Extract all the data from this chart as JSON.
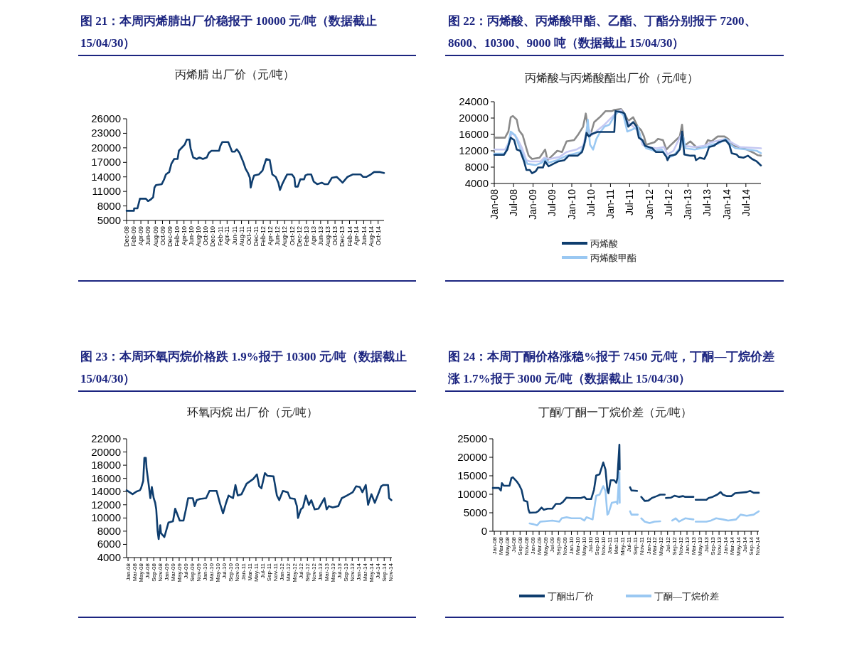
{
  "chart_data": [
    {
      "type": "line",
      "title": "图 21：本周丙烯腈出厂价稳报于 10000 元/吨（数据截止 15/04/30）",
      "subtitle": "丙烯腈 出厂价（元/吨）",
      "xlim": [
        "2008-12-01",
        "2014-11-20"
      ],
      "ylim": [
        5000,
        26000
      ],
      "yticks": [
        5000,
        8000,
        11000,
        14000,
        17000,
        20000,
        23000,
        26000
      ],
      "xticks": [
        {
          "value": "2008-12-01",
          "label": "Dec-08"
        },
        {
          "value": "2009-02-01",
          "label": "Feb-09"
        },
        {
          "value": "2009-04-01",
          "label": "Apr-09"
        },
        {
          "value": "2009-06-01",
          "label": "Jun-09"
        },
        {
          "value": "2009-08-01",
          "label": "Aug-09"
        },
        {
          "value": "2009-10-01",
          "label": "Oct-09"
        },
        {
          "value": "2009-12-01",
          "label": "Dec-09"
        },
        {
          "value": "2010-02-01",
          "label": "Feb-10"
        },
        {
          "value": "2010-04-01",
          "label": "Apr-10"
        },
        {
          "value": "2010-06-01",
          "label": "Jun-10"
        },
        {
          "value": "2010-08-01",
          "label": "Aug-10"
        },
        {
          "value": "2010-10-01",
          "label": "Oct-10"
        },
        {
          "value": "2010-12-01",
          "label": "Dec-10"
        },
        {
          "value": "2011-02-01",
          "label": "Feb-11"
        },
        {
          "value": "2011-04-01",
          "label": "Apr-11"
        },
        {
          "value": "2011-06-01",
          "label": "Jun-11"
        },
        {
          "value": "2011-08-01",
          "label": "Aug-11"
        },
        {
          "value": "2011-10-01",
          "label": "Oct-11"
        },
        {
          "value": "2011-12-01",
          "label": "Dec-11"
        },
        {
          "value": "2012-02-01",
          "label": "Feb-12"
        },
        {
          "value": "2012-04-01",
          "label": "Apr-12"
        },
        {
          "value": "2012-06-01",
          "label": "Jun-12"
        },
        {
          "value": "2012-08-01",
          "label": "Aug-12"
        },
        {
          "value": "2012-10-01",
          "label": "Oct-12"
        },
        {
          "value": "2012-12-01",
          "label": "Dec-12"
        },
        {
          "value": "2013-02-01",
          "label": "Feb-13"
        },
        {
          "value": "2013-04-01",
          "label": "Apr-13"
        },
        {
          "value": "2013-06-01",
          "label": "Jun-13"
        },
        {
          "value": "2013-08-01",
          "label": "Aug-13"
        },
        {
          "value": "2013-10-01",
          "label": "Oct-13"
        },
        {
          "value": "2013-12-01",
          "label": "Dec-13"
        },
        {
          "value": "2014-02-01",
          "label": "Feb-14"
        },
        {
          "value": "2014-04-01",
          "label": "Apr-14"
        },
        {
          "value": "2014-06-01",
          "label": "Jun-14"
        },
        {
          "value": "2014-08-01",
          "label": "Aug-14"
        },
        {
          "value": "2014-10-01",
          "label": "Oct-14"
        }
      ],
      "series": [
        {
          "color": "#0e3d6e",
          "x": [
            "2008-12-01",
            "2009-02-01",
            "2009-02-03",
            "2009-03-03",
            "2009-03-24",
            "2009-05-13",
            "2009-06-01",
            "2009-06-22",
            "2009-07-14",
            "2009-07-25",
            "2009-08-07",
            "2009-09-25",
            "2009-10-15",
            "2009-10-30",
            "2009-11-27",
            "2009-12-15",
            "2010-01-08",
            "2010-02-06",
            "2010-02-17",
            "2010-03-20",
            "2010-04-08",
            "2010-04-25",
            "2010-05-17",
            "2010-05-27",
            "2010-06-18",
            "2010-07-18",
            "2010-08-10",
            "2010-09-08",
            "2010-10-11",
            "2010-10-30",
            "2010-11-20",
            "2011-01-23",
            "2011-02-03",
            "2011-02-20",
            "2011-04-11",
            "2011-05-13",
            "2011-06-04",
            "2011-06-22",
            "2011-07-14",
            "2011-08-14",
            "2011-09-04",
            "2011-09-25",
            "2011-10-11",
            "2011-10-18",
            "2011-11-02",
            "2011-11-16",
            "2011-12-25",
            "2012-01-26",
            "2012-02-17",
            "2012-02-27",
            "2012-03-27",
            "2012-04-18",
            "2012-05-17",
            "2012-06-08",
            "2012-06-22",
            "2012-07-11",
            "2012-07-31",
            "2012-08-21",
            "2012-10-01",
            "2012-10-22",
            "2012-10-30",
            "2012-11-20",
            "2012-12-11",
            "2013-01-12",
            "2013-01-23",
            "2013-02-10",
            "2013-03-13",
            "2013-04-04",
            "2013-05-03",
            "2013-06-11",
            "2013-07-04",
            "2013-08-03",
            "2013-09-04",
            "2013-10-15",
            "2013-11-06",
            "2013-12-04",
            "2014-01-15",
            "2014-02-27",
            "2014-05-06",
            "2014-05-27",
            "2014-06-25",
            "2014-07-31",
            "2014-08-28",
            "2014-10-18",
            "2014-11-20"
          ],
          "values": [
            7000,
            7000,
            7500,
            7500,
            9500,
            9500,
            9000,
            9300,
            9800,
            11800,
            12300,
            12500,
            13500,
            14500,
            15000,
            16700,
            17700,
            17700,
            19400,
            20200,
            20700,
            21700,
            21700,
            19900,
            18000,
            17700,
            18000,
            17700,
            18000,
            19000,
            19400,
            19400,
            20400,
            21200,
            21200,
            19200,
            19200,
            19700,
            19000,
            17200,
            15700,
            14800,
            13800,
            11800,
            13300,
            14300,
            14500,
            15300,
            17000,
            17700,
            17500,
            14500,
            14000,
            12800,
            11300,
            12500,
            13500,
            14500,
            14500,
            13800,
            12000,
            12000,
            13500,
            13500,
            14300,
            14500,
            14500,
            13000,
            12500,
            12800,
            12500,
            12500,
            13800,
            14000,
            13500,
            12800,
            14000,
            14500,
            14500,
            14000,
            14000,
            14500,
            15000,
            15000,
            14800
          ]
        }
      ]
    },
    {
      "type": "line",
      "title": "图 22：丙烯酸、丙烯酸甲酯、乙酯、丁酯分别报于 7200、8600、10300、9000 吨（数据截止 15/04/30）",
      "subtitle": "丙烯酸与丙烯酸酯出厂价（元/吨）",
      "xlim": [
        "2008-01-01",
        "2014-11-20"
      ],
      "ylim": [
        4000,
        24000
      ],
      "yticks": [
        4000,
        8000,
        12000,
        16000,
        20000,
        24000
      ],
      "legend": "bottom",
      "xticks": [
        {
          "value": "2008-01-01",
          "label": "Jan-08"
        },
        {
          "value": "2008-07-01",
          "label": "Jul-08"
        },
        {
          "value": "2009-01-01",
          "label": "Jan-09"
        },
        {
          "value": "2009-07-01",
          "label": "Jul-09"
        },
        {
          "value": "2010-01-01",
          "label": "Jan-10"
        },
        {
          "value": "2010-07-01",
          "label": "Jul-10"
        },
        {
          "value": "2011-01-01",
          "label": "Jan-11"
        },
        {
          "value": "2011-07-01",
          "label": "Jul-11"
        },
        {
          "value": "2012-01-01",
          "label": "Jan-12"
        },
        {
          "value": "2012-07-01",
          "label": "Jul-12"
        },
        {
          "value": "2013-01-01",
          "label": "Jan-13"
        },
        {
          "value": "2013-07-01",
          "label": "Jul-13"
        },
        {
          "value": "2014-01-01",
          "label": "Jan-14"
        },
        {
          "value": "2014-07-01",
          "label": "Jul-14"
        }
      ],
      "series": [
        {
          "name": "丙烯酸",
          "color": "#0e3d6e",
          "x": [
            "2008-01-01",
            "2008-04-01",
            "2008-05-03",
            "2008-06-04",
            "2008-07-07",
            "2008-07-31",
            "2008-09-01",
            "2008-10-08",
            "2008-10-30",
            "2008-12-01",
            "2008-12-22",
            "2009-01-26",
            "2009-02-17",
            "2009-04-04",
            "2009-04-25",
            "2009-05-27",
            "2009-07-11",
            "2009-08-28",
            "2009-10-22",
            "2009-12-04",
            "2010-02-24",
            "2010-04-08",
            "2010-04-29",
            "2010-05-20",
            "2010-06-11",
            "2010-07-07",
            "2010-09-01",
            "2011-02-06",
            "2011-02-17",
            "2011-04-22",
            "2011-05-13",
            "2011-06-18",
            "2011-08-03",
            "2011-09-04",
            "2011-09-25",
            "2011-10-30",
            "2011-11-23",
            "2012-02-01",
            "2012-03-03",
            "2012-05-10",
            "2012-06-11",
            "2012-06-22",
            "2012-07-14",
            "2012-09-08",
            "2012-10-15",
            "2012-11-06",
            "2012-11-27",
            "2013-01-23",
            "2013-03-06",
            "2013-03-17",
            "2013-04-22",
            "2013-06-04",
            "2013-06-25",
            "2013-07-18",
            "2013-09-01",
            "2013-10-18",
            "2013-12-22",
            "2014-01-26",
            "2014-02-17",
            "2014-04-04",
            "2014-04-25",
            "2014-06-08",
            "2014-07-21",
            "2014-08-28",
            "2014-10-11",
            "2014-11-20"
          ],
          "values": [
            11000,
            11000,
            12300,
            15200,
            14600,
            12300,
            12000,
            9400,
            7300,
            7300,
            6500,
            7000,
            7900,
            7900,
            9400,
            8200,
            8800,
            9400,
            9700,
            10800,
            10800,
            11700,
            13500,
            16400,
            15500,
            16100,
            16600,
            16600,
            21700,
            21400,
            21100,
            17900,
            19000,
            17900,
            15200,
            14600,
            13200,
            12600,
            11700,
            11700,
            10500,
            9700,
            10800,
            11100,
            12300,
            16700,
            11100,
            10800,
            10800,
            9700,
            10300,
            10000,
            11100,
            12900,
            13200,
            14100,
            14600,
            13500,
            11400,
            11100,
            10500,
            10300,
            10800,
            10000,
            9400,
            8400
          ]
        },
        {
          "name": "丙烯酸甲酯",
          "color": "#9ac8f2",
          "x": [
            "2008-01-01",
            "2008-04-11",
            "2008-05-13",
            "2008-06-04",
            "2008-07-18",
            "2008-08-21",
            "2008-10-08",
            "2008-11-09",
            "2009-01-26",
            "2009-03-24",
            "2009-04-25",
            "2009-05-27",
            "2009-08-17",
            "2009-11-13",
            "2010-03-27",
            "2010-05-10",
            "2010-06-01",
            "2010-06-22",
            "2010-07-21",
            "2010-08-21",
            "2010-09-22",
            "2010-11-06",
            "2010-12-22",
            "2011-02-06",
            "2011-03-20",
            "2011-05-03",
            "2011-06-08",
            "2011-08-03",
            "2011-09-15",
            "2011-10-18",
            "2011-12-04",
            "2012-02-20",
            "2012-04-29",
            "2012-06-01",
            "2012-06-22",
            "2012-08-17",
            "2012-10-25",
            "2012-11-16",
            "2012-12-08",
            "2013-03-06",
            "2013-06-25",
            "2013-08-10",
            "2013-10-18",
            "2013-12-22",
            "2014-02-06",
            "2014-03-24",
            "2014-07-11",
            "2014-10-11",
            "2014-11-20"
          ],
          "values": [
            11300,
            11300,
            13500,
            16700,
            15800,
            13200,
            10300,
            8800,
            8500,
            9100,
            10000,
            9100,
            9700,
            10800,
            11700,
            14300,
            19600,
            13500,
            12300,
            14900,
            16400,
            17900,
            18400,
            20500,
            21700,
            20800,
            16700,
            17300,
            17900,
            14900,
            12600,
            12000,
            12300,
            11100,
            10300,
            10800,
            12900,
            15500,
            12600,
            12300,
            12900,
            13500,
            13800,
            14900,
            13500,
            12600,
            12300,
            12000,
            11400
          ]
        },
        {
          "color": "#c5c8f2",
          "x": [
            "2008-01-01",
            "2008-04-11",
            "2008-05-13",
            "2008-06-15",
            "2008-07-31",
            "2008-09-15",
            "2008-10-30",
            "2008-12-01",
            "2009-03-13",
            "2009-04-15",
            "2009-06-08",
            "2009-09-08",
            "2009-11-13",
            "2010-02-13",
            "2010-04-18",
            "2010-06-01",
            "2010-07-07",
            "2010-09-01",
            "2010-11-06",
            "2011-02-06",
            "2011-04-11",
            "2011-05-24",
            "2011-07-21",
            "2011-09-25",
            "2011-10-30",
            "2011-12-15",
            "2012-03-13",
            "2012-05-20",
            "2012-06-22",
            "2012-08-17",
            "2012-11-06",
            "2012-11-27",
            "2013-03-06",
            "2013-06-04",
            "2013-08-10",
            "2013-12-22",
            "2014-03-03",
            "2014-05-06",
            "2014-11-20"
          ],
          "values": [
            12300,
            12300,
            13800,
            16400,
            15200,
            12900,
            9700,
            9400,
            9400,
            10300,
            10000,
            10500,
            11700,
            12300,
            13200,
            17900,
            15800,
            17000,
            18400,
            20800,
            22000,
            19600,
            18200,
            16700,
            13500,
            12900,
            12600,
            12900,
            11100,
            12000,
            16400,
            13200,
            12900,
            13200,
            14100,
            14900,
            13800,
            12900,
            12600
          ]
        },
        {
          "color": "#8a8a8a",
          "x": [
            "2008-01-01",
            "2008-04-11",
            "2008-05-13",
            "2008-06-04",
            "2008-06-25",
            "2008-07-31",
            "2008-08-21",
            "2008-09-25",
            "2008-10-30",
            "2008-11-20",
            "2008-12-22",
            "2009-03-03",
            "2009-03-24",
            "2009-04-25",
            "2009-05-17",
            "2009-07-01",
            "2009-08-17",
            "2009-10-01",
            "2009-11-13",
            "2010-01-23",
            "2010-03-06",
            "2010-04-18",
            "2010-05-13",
            "2010-06-11",
            "2010-06-22",
            "2010-07-31",
            "2010-09-22",
            "2010-11-16",
            "2011-01-15",
            "2011-02-06",
            "2011-04-11",
            "2011-05-13",
            "2011-06-18",
            "2011-08-03",
            "2011-09-15",
            "2011-10-18",
            "2011-11-13",
            "2011-12-04",
            "2012-02-20",
            "2012-03-24",
            "2012-05-10",
            "2012-06-11",
            "2012-07-14",
            "2012-08-28",
            "2012-10-15",
            "2012-11-06",
            "2012-11-27",
            "2013-01-23",
            "2013-04-01",
            "2013-06-04",
            "2013-07-07",
            "2013-08-10",
            "2013-10-08",
            "2013-12-11",
            "2014-01-15",
            "2014-03-03",
            "2014-04-25",
            "2014-07-11",
            "2014-09-18",
            "2014-10-22",
            "2014-11-20"
          ],
          "values": [
            15200,
            15200,
            16700,
            20200,
            20500,
            19600,
            17000,
            15800,
            12600,
            10800,
            10000,
            10300,
            11100,
            12300,
            9700,
            10800,
            12000,
            11700,
            14300,
            14600,
            16100,
            17900,
            21100,
            16400,
            15500,
            19000,
            20200,
            21700,
            21700,
            22000,
            22200,
            21100,
            19300,
            20200,
            17900,
            17000,
            15500,
            13500,
            14100,
            14900,
            14600,
            12300,
            13200,
            14300,
            15500,
            18400,
            13200,
            14300,
            12600,
            12900,
            14600,
            14300,
            15500,
            15500,
            14900,
            13200,
            12900,
            12300,
            11400,
            10900,
            10800
          ]
        }
      ]
    },
    {
      "type": "line",
      "title": "图 23：本周环氧丙烷价格跌 1.9%报于 10300 元/吨（数据截止 15/04/30）",
      "subtitle": "环氧丙烷 出厂价（元/吨）",
      "xlim": [
        "2007-12-18",
        "2014-11-13"
      ],
      "ylim": [
        4000,
        22000
      ],
      "yticks": [
        4000,
        6000,
        8000,
        10000,
        12000,
        14000,
        16000,
        18000,
        20000,
        22000
      ],
      "xticks": [
        {
          "value": "2008-01-01",
          "label": "Jan-08"
        },
        {
          "value": "2008-03-01",
          "label": "Mar-08"
        },
        {
          "value": "2008-05-01",
          "label": "May-08"
        },
        {
          "value": "2008-07-01",
          "label": "Jul-08"
        },
        {
          "value": "2008-09-01",
          "label": "Sep-08"
        },
        {
          "value": "2008-11-01",
          "label": "Nov-08"
        },
        {
          "value": "2009-01-01",
          "label": "Jan-09"
        },
        {
          "value": "2009-03-01",
          "label": "Mar-09"
        },
        {
          "value": "2009-05-01",
          "label": "May-09"
        },
        {
          "value": "2009-07-01",
          "label": "Jul-09"
        },
        {
          "value": "2009-09-01",
          "label": "Sep-09"
        },
        {
          "value": "2009-11-01",
          "label": "Nov-09"
        },
        {
          "value": "2010-01-01",
          "label": "Jan-10"
        },
        {
          "value": "2010-03-01",
          "label": "Mar-10"
        },
        {
          "value": "2010-05-01",
          "label": "May-10"
        },
        {
          "value": "2010-07-01",
          "label": "Jul-10"
        },
        {
          "value": "2010-09-01",
          "label": "Sep-10"
        },
        {
          "value": "2010-11-01",
          "label": "Nov-10"
        },
        {
          "value": "2011-01-01",
          "label": "Jan-11"
        },
        {
          "value": "2011-03-01",
          "label": "Mar-11"
        },
        {
          "value": "2011-05-01",
          "label": "May-11"
        },
        {
          "value": "2011-07-01",
          "label": "Jul-11"
        },
        {
          "value": "2011-09-01",
          "label": "Sep-11"
        },
        {
          "value": "2011-11-01",
          "label": "Nov-11"
        },
        {
          "value": "2012-01-01",
          "label": "Jan-12"
        },
        {
          "value": "2012-03-01",
          "label": "Mar-12"
        },
        {
          "value": "2012-05-01",
          "label": "May-12"
        },
        {
          "value": "2012-07-01",
          "label": "Jul-12"
        },
        {
          "value": "2012-09-01",
          "label": "Sep-12"
        },
        {
          "value": "2012-11-01",
          "label": "Nov-12"
        },
        {
          "value": "2013-01-01",
          "label": "Jan-13"
        },
        {
          "value": "2013-03-01",
          "label": "Mar-13"
        },
        {
          "value": "2013-05-01",
          "label": "May-13"
        },
        {
          "value": "2013-07-01",
          "label": "Jul-13"
        },
        {
          "value": "2013-09-01",
          "label": "Sep-13"
        },
        {
          "value": "2013-11-01",
          "label": "Nov-13"
        },
        {
          "value": "2014-01-01",
          "label": "Jan-14"
        },
        {
          "value": "2014-03-01",
          "label": "Mar-14"
        },
        {
          "value": "2014-05-01",
          "label": "May-14"
        },
        {
          "value": "2014-07-01",
          "label": "Jul-14"
        },
        {
          "value": "2014-09-01",
          "label": "Sep-14"
        },
        {
          "value": "2014-11-01",
          "label": "Nov-14"
        }
      ],
      "series": [
        {
          "color": "#0e3d6e",
          "x": [
            "2007-12-18",
            "2008-02-13",
            "2008-03-20",
            "2008-04-22",
            "2008-05-03",
            "2008-05-24",
            "2008-06-04",
            "2008-06-18",
            "2008-06-25",
            "2008-07-14",
            "2008-07-31",
            "2008-08-14",
            "2008-09-01",
            "2008-09-15",
            "2008-09-25",
            "2008-10-08",
            "2008-10-18",
            "2008-11-02",
            "2008-11-09",
            "2008-12-11",
            "2009-01-19",
            "2009-03-03",
            "2009-03-24",
            "2009-04-15",
            "2009-05-06",
            "2009-06-11",
            "2009-07-04",
            "2009-07-25",
            "2009-09-08",
            "2009-09-25",
            "2009-10-15",
            "2009-11-16",
            "2010-01-12",
            "2010-02-13",
            "2010-04-22",
            "2010-05-24",
            "2010-06-22",
            "2010-07-21",
            "2010-08-14",
            "2010-09-25",
            "2010-10-18",
            "2010-11-09",
            "2010-12-15",
            "2011-02-01",
            "2011-04-04",
            "2011-05-10",
            "2011-06-01",
            "2011-06-22",
            "2011-07-25",
            "2011-08-17",
            "2011-10-15",
            "2011-11-16",
            "2011-12-08",
            "2012-01-12",
            "2012-02-27",
            "2012-03-20",
            "2012-05-03",
            "2012-05-24",
            "2012-06-04",
            "2012-07-01",
            "2012-07-21",
            "2012-08-17",
            "2012-09-15",
            "2012-10-08",
            "2012-11-09",
            "2012-12-15",
            "2013-02-10",
            "2013-03-03",
            "2013-03-24",
            "2013-04-29",
            "2013-06-22",
            "2013-07-25",
            "2013-09-11",
            "2013-11-06",
            "2013-12-08",
            "2014-01-12",
            "2014-02-06",
            "2014-03-10",
            "2014-04-01",
            "2014-05-03",
            "2014-06-04",
            "2014-07-11",
            "2014-08-03",
            "2014-08-24",
            "2014-10-08",
            "2014-10-18",
            "2014-11-09"
          ],
          "values": [
            14200,
            13600,
            14000,
            14200,
            14500,
            15600,
            19100,
            19100,
            17500,
            15200,
            13000,
            14700,
            13000,
            12300,
            11300,
            8000,
            6800,
            8900,
            7700,
            7100,
            9300,
            9500,
            11400,
            10500,
            9600,
            9600,
            11300,
            13000,
            13000,
            11800,
            12700,
            12900,
            13000,
            14100,
            14100,
            12200,
            10700,
            12300,
            13400,
            13000,
            15000,
            13400,
            13600,
            15200,
            15900,
            16600,
            14800,
            14500,
            16800,
            16400,
            16300,
            13400,
            12700,
            14100,
            13900,
            13000,
            12900,
            11800,
            10000,
            11300,
            11600,
            13400,
            12000,
            12700,
            11300,
            11400,
            13000,
            11300,
            11800,
            11600,
            11800,
            13000,
            13400,
            13900,
            14800,
            14700,
            13900,
            15000,
            12000,
            13600,
            12300,
            13800,
            14800,
            15000,
            15000,
            13000,
            12700
          ]
        }
      ]
    },
    {
      "type": "line",
      "title": "图 24：本周丁酮价格涨稳%报于 7450 元/吨，丁酮—丁烷价差涨 1.7%报于 3000 元/吨（数据截止 15/04/30）",
      "subtitle": "丁酮/丁酮一丁烷价差（元/吨）",
      "xlim": [
        "2007-12-18",
        "2014-11-13"
      ],
      "ylim": [
        0,
        25000
      ],
      "yticks": [
        0,
        5000,
        10000,
        15000,
        20000,
        25000
      ],
      "legend": "bottom",
      "xticks": [
        {
          "value": "2008-01-01",
          "label": "Jan-08"
        },
        {
          "value": "2008-03-01",
          "label": "Mar-08"
        },
        {
          "value": "2008-05-01",
          "label": "May-08"
        },
        {
          "value": "2008-07-01",
          "label": "Jul-08"
        },
        {
          "value": "2008-09-01",
          "label": "Sep-08"
        },
        {
          "value": "2008-11-01",
          "label": "Nov-08"
        },
        {
          "value": "2009-01-01",
          "label": "Jan-09"
        },
        {
          "value": "2009-03-01",
          "label": "Mar-09"
        },
        {
          "value": "2009-05-01",
          "label": "May-09"
        },
        {
          "value": "2009-07-01",
          "label": "Jul-09"
        },
        {
          "value": "2009-09-01",
          "label": "Sep-09"
        },
        {
          "value": "2009-11-01",
          "label": "Nov-09"
        },
        {
          "value": "2010-01-01",
          "label": "Jan-10"
        },
        {
          "value": "2010-03-01",
          "label": "Mar-10"
        },
        {
          "value": "2010-05-01",
          "label": "May-10"
        },
        {
          "value": "2010-07-01",
          "label": "Jul-10"
        },
        {
          "value": "2010-09-01",
          "label": "Sep-10"
        },
        {
          "value": "2010-11-01",
          "label": "Nov-10"
        },
        {
          "value": "2011-01-01",
          "label": "Jan-11"
        },
        {
          "value": "2011-03-01",
          "label": "Mar-11"
        },
        {
          "value": "2011-05-01",
          "label": "May-11"
        },
        {
          "value": "2011-07-01",
          "label": "Jul-11"
        },
        {
          "value": "2011-09-01",
          "label": "Sep-11"
        },
        {
          "value": "2011-11-01",
          "label": "Nov-11"
        },
        {
          "value": "2012-01-01",
          "label": "Jan-12"
        },
        {
          "value": "2012-03-01",
          "label": "Mar-12"
        },
        {
          "value": "2012-05-01",
          "label": "May-12"
        },
        {
          "value": "2012-07-01",
          "label": "Jul-12"
        },
        {
          "value": "2012-09-01",
          "label": "Sep-12"
        },
        {
          "value": "2012-11-01",
          "label": "Nov-12"
        },
        {
          "value": "2013-01-01",
          "label": "Jan-13"
        },
        {
          "value": "2013-03-01",
          "label": "Mar-13"
        },
        {
          "value": "2013-05-01",
          "label": "May-13"
        },
        {
          "value": "2013-07-01",
          "label": "Jul-13"
        },
        {
          "value": "2013-09-01",
          "label": "Sep-13"
        },
        {
          "value": "2013-11-01",
          "label": "Nov-13"
        },
        {
          "value": "2014-01-01",
          "label": "Jan-14"
        },
        {
          "value": "2014-03-01",
          "label": "Mar-14"
        },
        {
          "value": "2014-05-01",
          "label": "May-14"
        },
        {
          "value": "2014-07-01",
          "label": "Jul-14"
        },
        {
          "value": "2014-09-01",
          "label": "Sep-14"
        },
        {
          "value": "2014-11-01",
          "label": "Nov-14"
        }
      ],
      "series": [
        {
          "name": "丁酮出厂价",
          "color": "#0e3d6e",
          "x": [
            "2007-12-18",
            "2008-02-13",
            "2008-03-03",
            "2008-03-13",
            "2008-04-01",
            "2008-05-24",
            "2008-06-11",
            "2008-06-25",
            "2008-07-31",
            "2008-08-24",
            "2008-09-15",
            "2008-10-08",
            "2008-11-09",
            "2008-11-20",
            "2008-12-01",
            "2009-02-01",
            "2009-02-20",
            "2009-03-24",
            "2009-04-15",
            "2009-05-20",
            "2009-07-04",
            "2009-08-07",
            "2009-09-18",
            "2009-10-15",
            "2009-11-16",
            "2010-01-01",
            "2010-04-01",
            "2010-05-03",
            "2010-05-24",
            "2010-07-07",
            "2010-08-03",
            "2010-08-24",
            "2010-09-25",
            "2010-10-30",
            "2010-11-20",
            "2010-12-08",
            "2010-12-18",
            "2011-01-08",
            "2011-02-10",
            "2011-03-03",
            "2011-03-13",
            "2011-04-01",
            "2011-04-04",
            "2011-05-20",
            "2011-07-11",
            "2011-07-25",
            "2011-08-07",
            "2011-09-15",
            "2011-10-08",
            "2011-10-25",
            "2011-11-27",
            "2012-01-01",
            "2012-02-03",
            "2012-03-20",
            "2012-04-22",
            "2012-06-04",
            "2012-06-11",
            "2012-06-15",
            "2012-08-03",
            "2012-09-04",
            "2012-10-18",
            "2012-11-23",
            "2012-12-15",
            "2013-03-03",
            "2013-03-13",
            "2013-03-24",
            "2013-07-04",
            "2013-07-25",
            "2013-09-01",
            "2013-10-15",
            "2013-11-16",
            "2013-12-08",
            "2014-01-12",
            "2014-02-27",
            "2014-04-01",
            "2014-07-21",
            "2014-08-24",
            "2014-09-25",
            "2014-11-13"
          ],
          "values": [
            11700,
            11700,
            11000,
            13000,
            12300,
            12300,
            14400,
            14600,
            13500,
            12500,
            11200,
            8300,
            8000,
            5800,
            5000,
            5100,
            5400,
            6400,
            5800,
            6100,
            6100,
            7400,
            7400,
            8000,
            9100,
            9000,
            9000,
            9300,
            8700,
            8700,
            11200,
            15100,
            15400,
            18600,
            16700,
            11200,
            10300,
            13800,
            13800,
            13100,
            14400,
            23400,
            16700,
            null,
            11900,
            11000,
            11000,
            10900,
            null,
            9300,
            8200,
            8300,
            9000,
            9500,
            9900,
            9900,
            null,
            9000,
            9100,
            9600,
            9300,
            9500,
            9300,
            9300,
            null,
            8500,
            8500,
            9000,
            9300,
            9900,
            10600,
            9900,
            9500,
            9500,
            10300,
            10600,
            10900,
            10400,
            10400
          ]
        },
        {
          "name": "丁酮—丁烷价差",
          "color": "#9ac8f2",
          "x": [
            "2008-12-01",
            "2009-01-08",
            "2009-02-10",
            "2009-03-13",
            "2009-04-25",
            "2009-07-04",
            "2009-09-08",
            "2009-10-01",
            "2009-11-16",
            "2010-01-01",
            "2010-04-01",
            "2010-05-03",
            "2010-05-24",
            "2010-07-21",
            "2010-08-24",
            "2010-09-25",
            "2010-10-30",
            "2010-11-20",
            "2010-12-08",
            "2010-12-18",
            "2011-01-19",
            "2011-03-03",
            "2011-03-13",
            "2011-04-01",
            "2011-04-04",
            "2011-05-20",
            "2011-07-11",
            "2011-07-25",
            "2011-09-22",
            "2011-10-08",
            "2011-10-25",
            "2011-11-27",
            "2012-01-12",
            "2012-02-27",
            "2012-04-22",
            "2012-06-11",
            "2012-08-14",
            "2012-09-15",
            "2012-10-18",
            "2012-12-15",
            "2013-03-03",
            "2013-03-13",
            "2013-03-24",
            "2013-07-04",
            "2013-08-17",
            "2013-10-04",
            "2013-12-08",
            "2014-01-26",
            "2014-04-11",
            "2014-05-24",
            "2014-07-21",
            "2014-09-25",
            "2014-11-13"
          ],
          "values": [
            2100,
            1900,
            1600,
            2600,
            2700,
            2900,
            2600,
            3500,
            3800,
            3500,
            3500,
            2900,
            3800,
            3200,
            9600,
            9900,
            12200,
            10900,
            4500,
            4800,
            7700,
            8000,
            7400,
            16000,
            7700,
            null,
            5400,
            4500,
            4500,
            null,
            3500,
            2600,
            2200,
            2600,
            2700,
            null,
            2900,
            3500,
            2600,
            3500,
            3200,
            null,
            2600,
            2600,
            2900,
            3500,
            3200,
            2900,
            3200,
            4500,
            4200,
            4500,
            5400
          ]
        }
      ]
    }
  ]
}
